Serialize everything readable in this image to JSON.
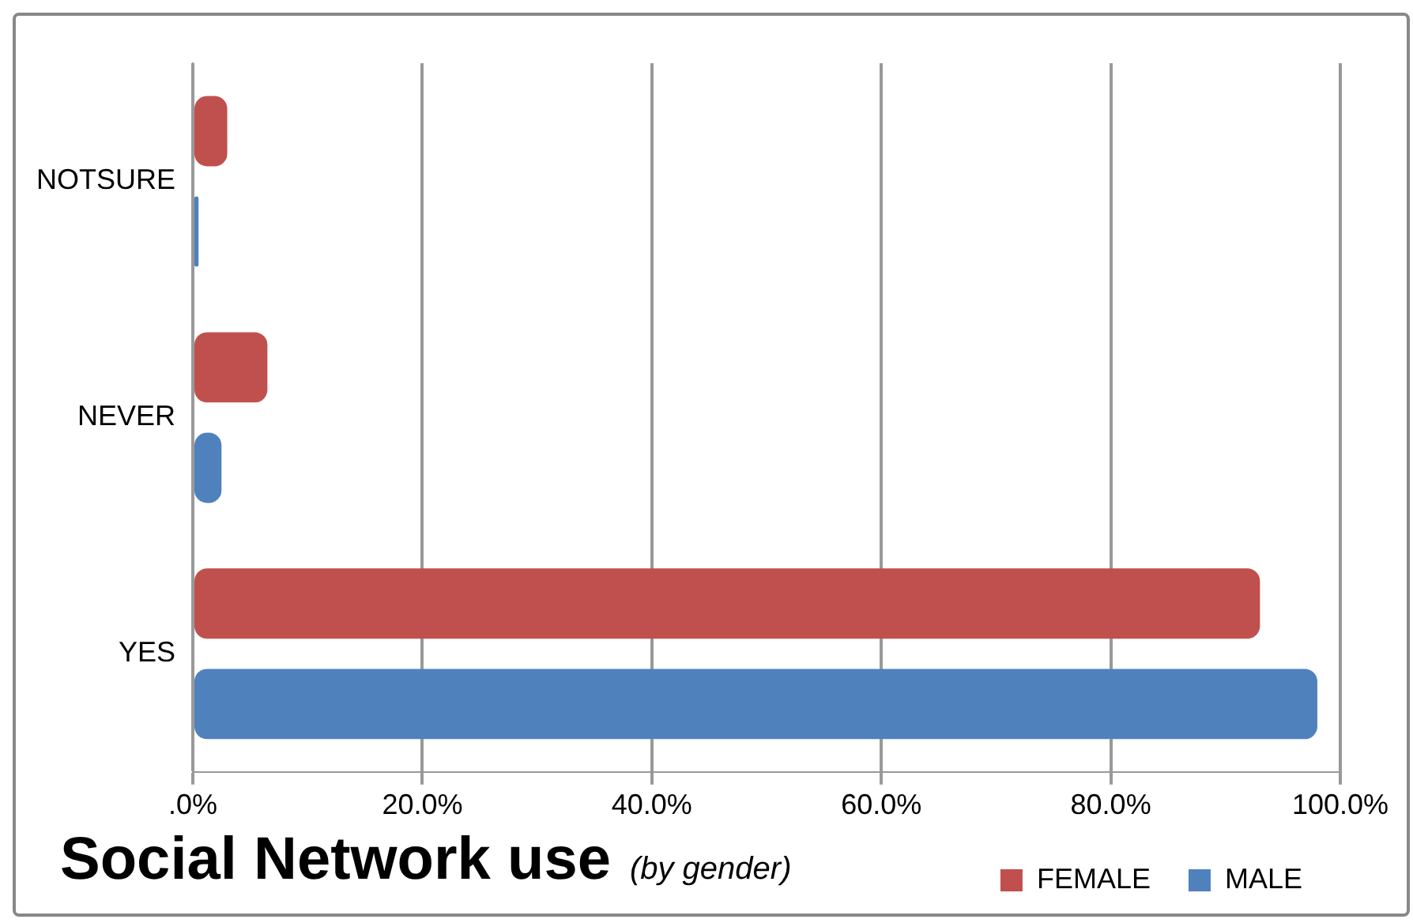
{
  "chart_data": {
    "type": "bar",
    "orientation": "horizontal",
    "title": "Social Network use",
    "subtitle": "(by gender)",
    "categories": [
      "NOTSURE",
      "NEVER",
      "YES"
    ],
    "series": [
      {
        "name": "FEMALE",
        "color": "#c0504d",
        "values": [
          3,
          6.5,
          93
        ]
      },
      {
        "name": "MALE",
        "color": "#4f81bd",
        "values": [
          0.5,
          2.5,
          98
        ]
      }
    ],
    "xlim": [
      0,
      100
    ],
    "xticks": [
      {
        "value": 0,
        "label": ".0%"
      },
      {
        "value": 20,
        "label": "20.0%"
      },
      {
        "value": 40,
        "label": "40.0%"
      },
      {
        "value": 60,
        "label": "60.0%"
      },
      {
        "value": 80,
        "label": "80.0%"
      },
      {
        "value": 100,
        "label": "100.0%"
      }
    ],
    "grid": "x",
    "legend": "bottom"
  }
}
